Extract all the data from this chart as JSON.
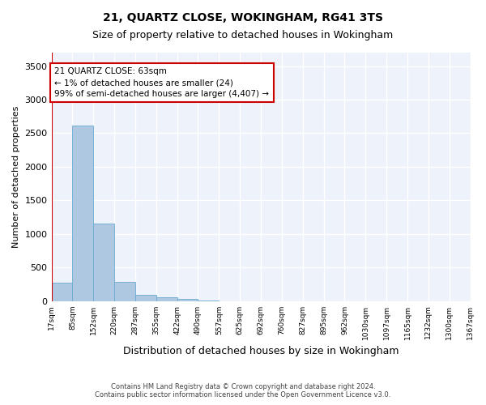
{
  "title1": "21, QUARTZ CLOSE, WOKINGHAM, RG41 3TS",
  "title2": "Size of property relative to detached houses in Wokingham",
  "xlabel": "Distribution of detached houses by size in Wokingham",
  "ylabel": "Number of detached properties",
  "footer1": "Contains HM Land Registry data © Crown copyright and database right 2024.",
  "footer2": "Contains public sector information licensed under the Open Government Licence v3.0.",
  "annotation_title": "21 QUARTZ CLOSE: 63sqm",
  "annotation_line1": "← 1% of detached houses are smaller (24)",
  "annotation_line2": "99% of semi-detached houses are larger (4,407) →",
  "bar_color": "#adc8e0",
  "bar_edge_color": "#6aaad4",
  "property_line_color": "#cc0000",
  "annotation_box_color": "#cc0000",
  "background_color": "#eef2fa",
  "tick_labels": [
    "17sqm",
    "85sqm",
    "152sqm",
    "220sqm",
    "287sqm",
    "355sqm",
    "422sqm",
    "490sqm",
    "557sqm",
    "625sqm",
    "692sqm",
    "760sqm",
    "827sqm",
    "895sqm",
    "962sqm",
    "1030sqm",
    "1097sqm",
    "1165sqm",
    "1232sqm",
    "1300sqm",
    "1367sqm"
  ],
  "values": [
    270,
    2620,
    1150,
    290,
    95,
    60,
    35,
    5,
    2,
    1,
    1,
    0,
    0,
    0,
    0,
    0,
    0,
    0,
    0,
    0
  ],
  "ylim": [
    0,
    3700
  ],
  "yticks": [
    0,
    500,
    1000,
    1500,
    2000,
    2500,
    3000,
    3500
  ]
}
